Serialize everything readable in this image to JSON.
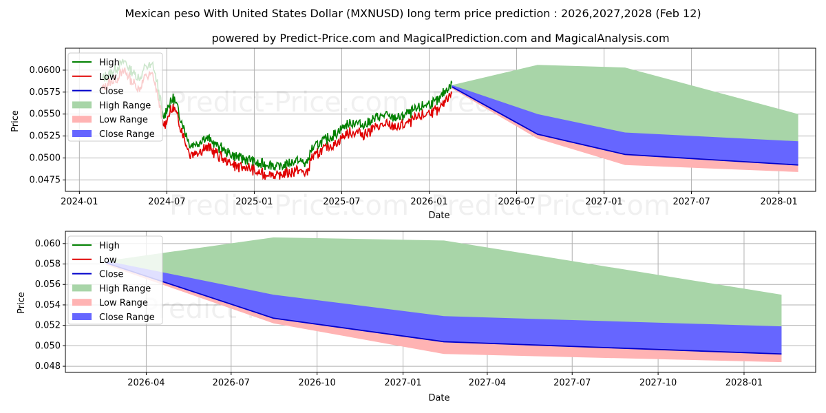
{
  "title": "Mexican peso With United States Dollar (MXNUSD) long term price prediction : 2026,2027,2028 (Feb 12)",
  "subtitle": "powered by Predict-Price.com and MagicalPrediction.com and MagicalAnalysis.com",
  "watermark": "Predict-Price.com",
  "colors": {
    "high": "#008000",
    "low": "#e00000",
    "close": "#0000cc",
    "high_range": "#a8d5a8",
    "low_range": "#ffb3b3",
    "close_range": "#6666ff"
  },
  "legend": {
    "high": "High",
    "low": "Low",
    "close": "Close",
    "high_range": "High Range",
    "low_range": "Low Range",
    "close_range": "Close Range"
  },
  "chart_data": [
    {
      "type": "line",
      "name": "top",
      "xlabel": "Date",
      "ylabel": "Price",
      "xlim": [
        2023.92,
        2028.21
      ],
      "ylim": [
        0.0462,
        0.0625
      ],
      "yticks": [
        0.0475,
        0.05,
        0.0525,
        0.055,
        0.0575,
        0.06
      ],
      "ytick_labels": [
        "0.0475",
        "0.0500",
        "0.0525",
        "0.0550",
        "0.0575",
        "0.0600"
      ],
      "xticks": [
        2024.0,
        2024.5,
        2025.0,
        2025.5,
        2026.0,
        2026.5,
        2027.0,
        2027.5,
        2028.0
      ],
      "xtick_labels": [
        "2024-01",
        "2024-07",
        "2025-01",
        "2025-07",
        "2026-01",
        "2026-07",
        "2027-01",
        "2027-07",
        "2028-01"
      ],
      "grid": true,
      "legend_position": "upper-left",
      "history_anchors": [
        [
          2024.13,
          0.0584
        ],
        [
          2024.18,
          0.0592
        ],
        [
          2024.22,
          0.0598
        ],
        [
          2024.26,
          0.0604
        ],
        [
          2024.3,
          0.0593
        ],
        [
          2024.34,
          0.0585
        ],
        [
          2024.38,
          0.0598
        ],
        [
          2024.42,
          0.06
        ],
        [
          2024.45,
          0.0575
        ],
        [
          2024.48,
          0.054
        ],
        [
          2024.51,
          0.0555
        ],
        [
          2024.54,
          0.0562
        ],
        [
          2024.57,
          0.0545
        ],
        [
          2024.6,
          0.0528
        ],
        [
          2024.63,
          0.051
        ],
        [
          2024.68,
          0.0512
        ],
        [
          2024.72,
          0.0518
        ],
        [
          2024.78,
          0.051
        ],
        [
          2024.85,
          0.05
        ],
        [
          2024.92,
          0.0494
        ],
        [
          2024.98,
          0.0493
        ],
        [
          2025.02,
          0.0487
        ],
        [
          2025.08,
          0.0488
        ],
        [
          2025.13,
          0.0484
        ],
        [
          2025.2,
          0.0488
        ],
        [
          2025.25,
          0.0492
        ],
        [
          2025.3,
          0.0488
        ],
        [
          2025.33,
          0.0505
        ],
        [
          2025.4,
          0.0515
        ],
        [
          2025.47,
          0.0522
        ],
        [
          2025.52,
          0.0532
        ],
        [
          2025.58,
          0.0535
        ],
        [
          2025.62,
          0.0532
        ],
        [
          2025.7,
          0.054
        ],
        [
          2025.75,
          0.0542
        ],
        [
          2025.82,
          0.054
        ],
        [
          2025.88,
          0.0545
        ],
        [
          2025.93,
          0.055
        ],
        [
          2025.98,
          0.0556
        ],
        [
          2026.03,
          0.0558
        ],
        [
          2026.06,
          0.056
        ],
        [
          2026.1,
          0.0574
        ],
        [
          2026.13,
          0.0578
        ]
      ],
      "forecast_x": [
        2026.13,
        2026.62,
        2027.12,
        2028.11
      ],
      "close": [
        0.0581,
        0.0527,
        0.0504,
        0.0492
      ],
      "high_range": {
        "upper": [
          0.0583,
          0.0606,
          0.0603,
          0.055
        ],
        "lower": [
          0.0579,
          0.0527,
          0.0504,
          0.0492
        ]
      },
      "low_range": {
        "upper": [
          0.0581,
          0.0527,
          0.0504,
          0.0492
        ],
        "lower": [
          0.0579,
          0.0522,
          0.0492,
          0.0484
        ]
      },
      "close_range": {
        "upper": [
          0.0583,
          0.055,
          0.0529,
          0.0519
        ],
        "lower": [
          0.0581,
          0.0527,
          0.0504,
          0.0492
        ]
      }
    },
    {
      "type": "line",
      "name": "bottom",
      "xlabel": "Date",
      "ylabel": "Price",
      "xlim": [
        2026.01,
        2028.21
      ],
      "ylim": [
        0.0474,
        0.0612
      ],
      "yticks": [
        0.048,
        0.05,
        0.052,
        0.054,
        0.056,
        0.058,
        0.06
      ],
      "ytick_labels": [
        "0.048",
        "0.050",
        "0.052",
        "0.054",
        "0.056",
        "0.058",
        "0.060"
      ],
      "xticks": [
        2026.247,
        2026.496,
        2026.748,
        2027.0,
        2027.247,
        2027.496,
        2027.748,
        2028.0
      ],
      "xtick_labels": [
        "2026-04",
        "2026-07",
        "2026-10",
        "2027-01",
        "2027-04",
        "2027-07",
        "2027-10",
        "2028-01"
      ],
      "grid": true,
      "legend_position": "upper-left",
      "forecast_x": [
        2026.13,
        2026.62,
        2027.12,
        2028.11
      ],
      "close": [
        0.0581,
        0.0527,
        0.0504,
        0.0492
      ],
      "high_range": {
        "upper": [
          0.0583,
          0.0606,
          0.0603,
          0.055
        ],
        "lower": [
          0.0579,
          0.0527,
          0.0504,
          0.0492
        ]
      },
      "low_range": {
        "upper": [
          0.0581,
          0.0527,
          0.0504,
          0.0492
        ],
        "lower": [
          0.0579,
          0.0522,
          0.0492,
          0.0484
        ]
      },
      "close_range": {
        "upper": [
          0.0583,
          0.055,
          0.0529,
          0.0519
        ],
        "lower": [
          0.0581,
          0.0527,
          0.0504,
          0.0492
        ]
      }
    }
  ]
}
